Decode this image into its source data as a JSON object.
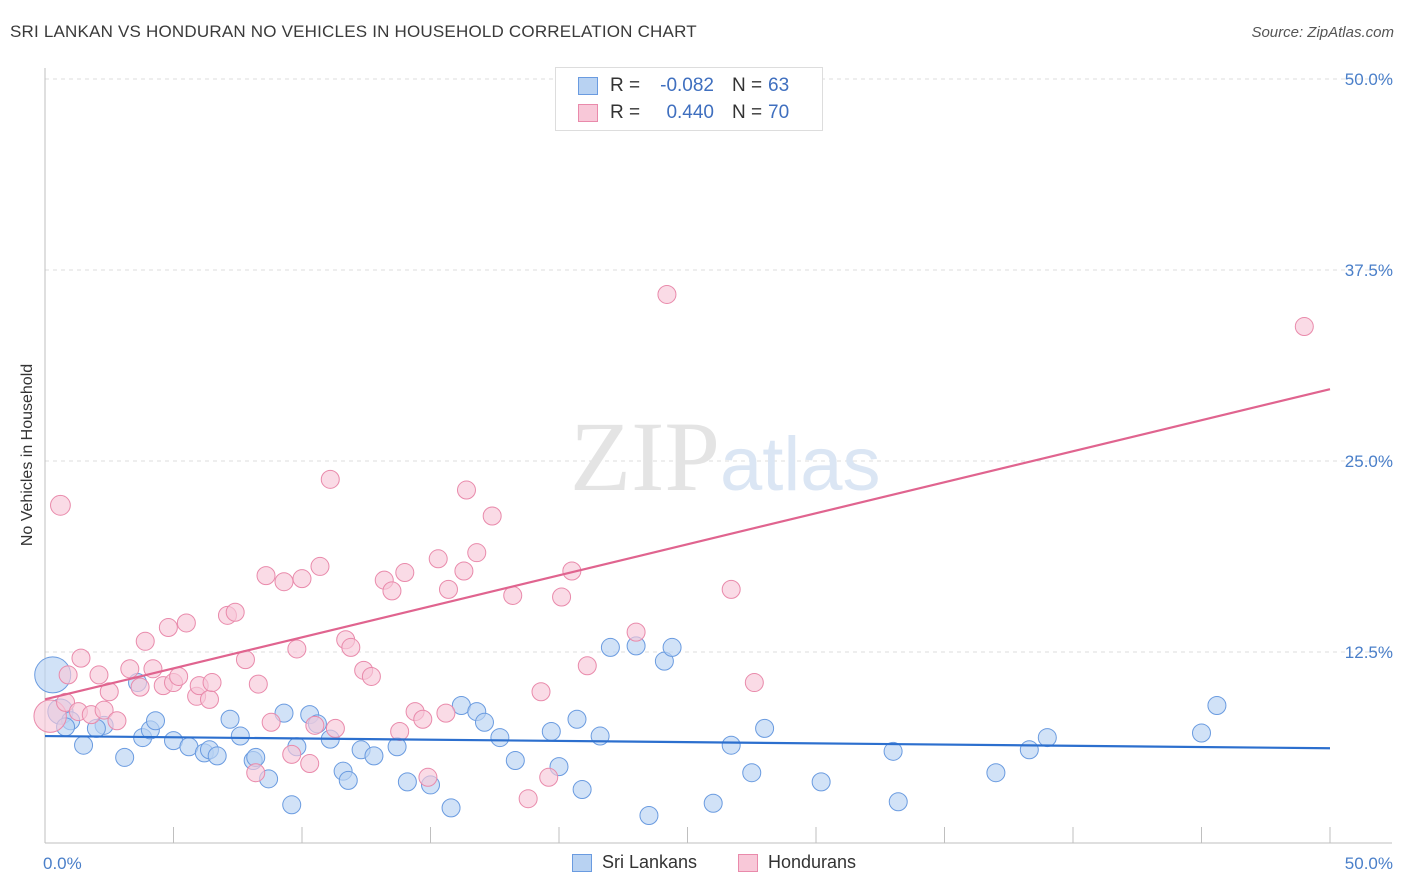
{
  "title": "SRI LANKAN VS HONDURAN NO VEHICLES IN HOUSEHOLD CORRELATION CHART",
  "source": "Source: ZipAtlas.com",
  "watermark": {
    "zip": "ZIP",
    "atlas": "atlas"
  },
  "legend": {
    "r_label": "R =",
    "n_label": "N =",
    "rows": [
      {
        "r": "-0.082",
        "n": "63",
        "fill": "#b8d2f2",
        "stroke": "#6a9be0"
      },
      {
        "r": "0.440",
        "n": "70",
        "fill": "#f8c8d8",
        "stroke": "#e98aab"
      }
    ]
  },
  "bottom_legend": [
    {
      "label": "Sri Lankans",
      "fill": "#b8d2f2",
      "stroke": "#6a9be0"
    },
    {
      "label": "Hondurans",
      "fill": "#f8c8d8",
      "stroke": "#e98aab"
    }
  ],
  "chart_data": {
    "type": "scatter",
    "xlabel": "",
    "ylabel": "No Vehicles in Household",
    "xlim": [
      0,
      50
    ],
    "ylim": [
      0,
      50
    ],
    "x_tick_labels": [
      "0.0%",
      "50.0%"
    ],
    "y_tick_labels": [
      "12.5%",
      "25.0%",
      "37.5%",
      "50.0%"
    ],
    "y_ticks": [
      12.5,
      25.0,
      37.5,
      50.0
    ],
    "series": [
      {
        "name": "Sri Lankans",
        "color": "#6a9be0",
        "fill": "#b8d2f2",
        "trend": {
          "x": [
            0,
            50
          ],
          "y": [
            7.0,
            6.2
          ],
          "color": "#2c6fce"
        },
        "points": [
          [
            0.3,
            11.0,
            2
          ],
          [
            0.6,
            8.6,
            1.4
          ],
          [
            1.0,
            8.0,
            1
          ],
          [
            1.5,
            6.4,
            1
          ],
          [
            2.3,
            7.7,
            1
          ],
          [
            3.1,
            5.6,
            1
          ],
          [
            3.6,
            10.5,
            1
          ],
          [
            3.8,
            6.9,
            1
          ],
          [
            4.1,
            7.4,
            1
          ],
          [
            4.3,
            8.0,
            1
          ],
          [
            5.0,
            6.7,
            1
          ],
          [
            5.6,
            6.3,
            1
          ],
          [
            6.2,
            5.9,
            1
          ],
          [
            6.4,
            6.1,
            1
          ],
          [
            6.7,
            5.7,
            1
          ],
          [
            7.2,
            8.1,
            1
          ],
          [
            7.6,
            7.0,
            1
          ],
          [
            8.1,
            5.4,
            1
          ],
          [
            8.2,
            5.6,
            1
          ],
          [
            8.7,
            4.2,
            1
          ],
          [
            9.3,
            8.5,
            1
          ],
          [
            9.6,
            2.5,
            1
          ],
          [
            9.8,
            6.3,
            1
          ],
          [
            10.3,
            8.4,
            1
          ],
          [
            10.6,
            7.8,
            1
          ],
          [
            11.1,
            6.8,
            1
          ],
          [
            11.6,
            4.7,
            1
          ],
          [
            11.8,
            4.1,
            1
          ],
          [
            12.3,
            6.1,
            1
          ],
          [
            12.8,
            5.7,
            1
          ],
          [
            13.7,
            6.3,
            1
          ],
          [
            14.1,
            4.0,
            1
          ],
          [
            15.0,
            3.8,
            1
          ],
          [
            15.8,
            2.3,
            1
          ],
          [
            16.2,
            9.0,
            1
          ],
          [
            16.8,
            8.6,
            1
          ],
          [
            17.1,
            7.9,
            1
          ],
          [
            17.7,
            6.9,
            1
          ],
          [
            18.3,
            5.4,
            1
          ],
          [
            19.7,
            7.3,
            1
          ],
          [
            20.0,
            5.0,
            1
          ],
          [
            20.7,
            8.1,
            1
          ],
          [
            20.9,
            3.5,
            1
          ],
          [
            21.6,
            7.0,
            1
          ],
          [
            22.0,
            12.8,
            1
          ],
          [
            23.0,
            12.9,
            1
          ],
          [
            23.5,
            1.8,
            1
          ],
          [
            24.1,
            11.9,
            1
          ],
          [
            24.4,
            12.8,
            1
          ],
          [
            26.0,
            2.6,
            1
          ],
          [
            26.7,
            6.4,
            1
          ],
          [
            27.5,
            4.6,
            1
          ],
          [
            28.0,
            7.5,
            1
          ],
          [
            30.2,
            4.0,
            1
          ],
          [
            33.0,
            6.0,
            1
          ],
          [
            33.2,
            2.7,
            1
          ],
          [
            37.0,
            4.6,
            1
          ],
          [
            38.3,
            6.1,
            1
          ],
          [
            39.0,
            6.9,
            1
          ],
          [
            45.0,
            7.2,
            1
          ],
          [
            45.6,
            9.0,
            1
          ],
          [
            0.8,
            7.6,
            1
          ],
          [
            2.0,
            7.5,
            1
          ]
        ]
      },
      {
        "name": "Hondurans",
        "color": "#e98aab",
        "fill": "#f8c8d8",
        "trend": {
          "x": [
            0,
            50
          ],
          "y": [
            9.4,
            29.7
          ],
          "color": "#e0648f"
        },
        "points": [
          [
            0.2,
            8.3,
            1.8
          ],
          [
            0.6,
            22.1,
            1.1
          ],
          [
            0.8,
            9.2,
            1
          ],
          [
            0.9,
            11.0,
            1
          ],
          [
            1.3,
            8.6,
            1
          ],
          [
            1.4,
            12.1,
            1
          ],
          [
            1.8,
            8.4,
            1
          ],
          [
            2.1,
            11.0,
            1
          ],
          [
            2.3,
            8.7,
            1
          ],
          [
            2.5,
            9.9,
            1
          ],
          [
            2.8,
            8.0,
            1
          ],
          [
            3.3,
            11.4,
            1
          ],
          [
            3.7,
            10.2,
            1
          ],
          [
            3.9,
            13.2,
            1
          ],
          [
            4.2,
            11.4,
            1
          ],
          [
            4.6,
            10.3,
            1
          ],
          [
            4.8,
            14.1,
            1
          ],
          [
            5.0,
            10.5,
            1
          ],
          [
            5.2,
            10.9,
            1
          ],
          [
            5.5,
            14.4,
            1
          ],
          [
            5.9,
            9.6,
            1
          ],
          [
            6.0,
            10.3,
            1
          ],
          [
            6.4,
            9.4,
            1
          ],
          [
            6.5,
            10.5,
            1
          ],
          [
            7.1,
            14.9,
            1
          ],
          [
            7.4,
            15.1,
            1
          ],
          [
            7.8,
            12.0,
            1
          ],
          [
            8.2,
            4.6,
            1
          ],
          [
            8.3,
            10.4,
            1
          ],
          [
            8.6,
            17.5,
            1
          ],
          [
            8.8,
            7.9,
            1
          ],
          [
            9.3,
            17.1,
            1
          ],
          [
            9.6,
            5.8,
            1
          ],
          [
            9.8,
            12.7,
            1
          ],
          [
            10.0,
            17.3,
            1
          ],
          [
            10.3,
            5.2,
            1
          ],
          [
            10.5,
            7.7,
            1
          ],
          [
            10.7,
            18.1,
            1
          ],
          [
            11.1,
            23.8,
            1
          ],
          [
            11.3,
            7.5,
            1
          ],
          [
            11.7,
            13.3,
            1
          ],
          [
            11.9,
            12.8,
            1
          ],
          [
            12.4,
            11.3,
            1
          ],
          [
            12.7,
            10.9,
            1
          ],
          [
            13.2,
            17.2,
            1
          ],
          [
            13.5,
            16.5,
            1
          ],
          [
            13.8,
            7.3,
            1
          ],
          [
            14.0,
            17.7,
            1
          ],
          [
            14.4,
            8.6,
            1
          ],
          [
            14.7,
            8.1,
            1
          ],
          [
            14.9,
            4.3,
            1
          ],
          [
            15.3,
            18.6,
            1
          ],
          [
            15.6,
            8.5,
            1
          ],
          [
            15.7,
            16.6,
            1
          ],
          [
            16.3,
            17.8,
            1
          ],
          [
            16.4,
            23.1,
            1
          ],
          [
            16.8,
            19.0,
            1
          ],
          [
            17.4,
            21.4,
            1
          ],
          [
            18.2,
            16.2,
            1
          ],
          [
            18.8,
            2.9,
            1
          ],
          [
            19.3,
            9.9,
            1
          ],
          [
            19.6,
            4.3,
            1
          ],
          [
            20.1,
            16.1,
            1
          ],
          [
            20.5,
            17.8,
            1
          ],
          [
            21.1,
            11.6,
            1
          ],
          [
            23.0,
            13.8,
            1
          ],
          [
            24.2,
            35.9,
            1
          ],
          [
            26.7,
            16.6,
            1
          ],
          [
            27.6,
            10.5,
            1
          ],
          [
            49.0,
            33.8,
            1
          ]
        ]
      }
    ]
  }
}
